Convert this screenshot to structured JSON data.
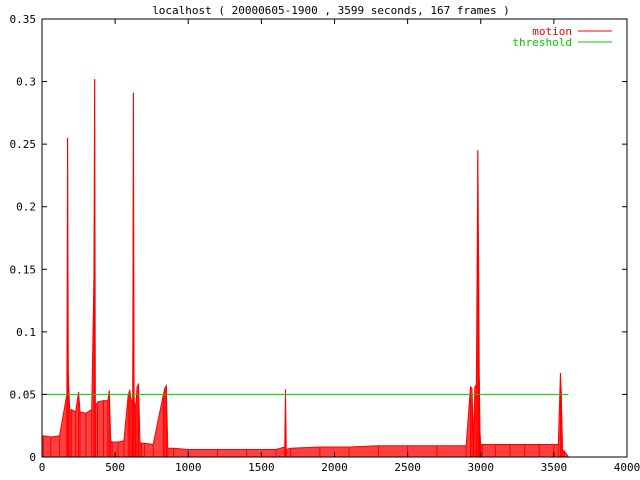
{
  "chart_data": {
    "type": "area",
    "title": "localhost ( 20000605-1900 , 3599 seconds, 167 frames )",
    "xlabel": "",
    "ylabel": "",
    "xlim": [
      0,
      4000
    ],
    "ylim": [
      0,
      0.35
    ],
    "x_ticks": [
      "0",
      "500",
      "1000",
      "1500",
      "2000",
      "2500",
      "3000",
      "3500",
      "4000"
    ],
    "y_ticks": [
      "0",
      "0.05",
      "0.1",
      "0.15",
      "0.2",
      "0.25",
      "0.3",
      "0.35"
    ],
    "grid": false,
    "legend_position": "top-right",
    "series": [
      {
        "name": "motion",
        "color": "#ff0000",
        "style": "filled-impulses",
        "x": [
          0,
          10,
          60,
          120,
          170,
          175,
          180,
          190,
          200,
          230,
          250,
          260,
          300,
          340,
          355,
          360,
          365,
          380,
          420,
          450,
          460,
          470,
          480,
          520,
          560,
          590,
          600,
          610,
          620,
          625,
          630,
          640,
          650,
          660,
          670,
          680,
          700,
          760,
          830,
          840,
          850,
          860,
          900,
          1000,
          1200,
          1400,
          1600,
          1660,
          1665,
          1670,
          1700,
          1900,
          2100,
          2300,
          2500,
          2700,
          2900,
          2930,
          2940,
          2950,
          2960,
          2970,
          2980,
          2985,
          2990,
          2995,
          3000,
          3010,
          3100,
          3200,
          3300,
          3400,
          3500,
          3530,
          3545,
          3550,
          3560,
          3570,
          3600
        ],
        "y": [
          0.016,
          0.017,
          0.016,
          0.017,
          0.05,
          0.255,
          0.067,
          0.035,
          0.038,
          0.036,
          0.052,
          0.036,
          0.035,
          0.038,
          0.143,
          0.302,
          0.04,
          0.044,
          0.045,
          0.045,
          0.053,
          0.013,
          0.012,
          0.012,
          0.013,
          0.05,
          0.053,
          0.045,
          0.046,
          0.291,
          0.045,
          0.038,
          0.056,
          0.058,
          0.012,
          0.011,
          0.011,
          0.01,
          0.05,
          0.055,
          0.057,
          0.007,
          0.007,
          0.006,
          0.006,
          0.006,
          0.006,
          0.008,
          0.054,
          0.006,
          0.007,
          0.008,
          0.008,
          0.009,
          0.009,
          0.009,
          0.009,
          0.056,
          0.055,
          0.012,
          0.056,
          0.058,
          0.245,
          0.16,
          0.063,
          0.02,
          0.01,
          0.01,
          0.01,
          0.01,
          0.01,
          0.01,
          0.01,
          0.01,
          0.067,
          0.053,
          0.005,
          0.005,
          0.0
        ]
      },
      {
        "name": "threshold",
        "color": "#00cc00",
        "style": "line",
        "x": [
          0,
          3600
        ],
        "y": [
          0.05,
          0.05
        ]
      }
    ]
  }
}
